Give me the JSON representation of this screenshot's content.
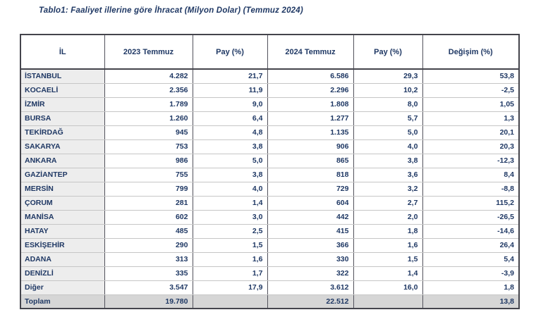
{
  "title": "Tablo1: Faaliyet illerine göre İhracat (Milyon Dolar) (Temmuz 2024)",
  "colors": {
    "text_navy": "#1f3864",
    "il_column_bg": "#ededed",
    "total_row_bg": "#d6d6d6",
    "border_dark": "#44444c",
    "border_light": "#c6c6c6"
  },
  "chart_data": {
    "type": "table",
    "title": "Tablo1: Faaliyet illerine göre İhracat (Milyon Dolar) (Temmuz 2024)",
    "columns": [
      "İL",
      "2023 Temmuz",
      "Pay (%)",
      "2024 Temmuz",
      "Pay (%)",
      "Değişim (%)"
    ],
    "rows": [
      [
        "İSTANBUL",
        "4.282",
        "21,7",
        "6.586",
        "29,3",
        "53,8"
      ],
      [
        "KOCAELİ",
        "2.356",
        "11,9",
        "2.296",
        "10,2",
        "-2,5"
      ],
      [
        "İZMİR",
        "1.789",
        "9,0",
        "1.808",
        "8,0",
        "1,05"
      ],
      [
        "BURSA",
        "1.260",
        "6,4",
        "1.277",
        "5,7",
        "1,3"
      ],
      [
        "TEKİRDAĞ",
        "945",
        "4,8",
        "1.135",
        "5,0",
        "20,1"
      ],
      [
        "SAKARYA",
        "753",
        "3,8",
        "906",
        "4,0",
        "20,3"
      ],
      [
        "ANKARA",
        "986",
        "5,0",
        "865",
        "3,8",
        "-12,3"
      ],
      [
        "GAZİANTEP",
        "755",
        "3,8",
        "818",
        "3,6",
        "8,4"
      ],
      [
        "MERSİN",
        "799",
        "4,0",
        "729",
        "3,2",
        "-8,8"
      ],
      [
        "ÇORUM",
        "281",
        "1,4",
        "604",
        "2,7",
        "115,2"
      ],
      [
        "MANİSA",
        "602",
        "3,0",
        "442",
        "2,0",
        "-26,5"
      ],
      [
        "HATAY",
        "485",
        "2,5",
        "415",
        "1,8",
        "-14,6"
      ],
      [
        "ESKİŞEHİR",
        "290",
        "1,5",
        "366",
        "1,6",
        "26,4"
      ],
      [
        "ADANA",
        "313",
        "1,6",
        "330",
        "1,5",
        "5,4"
      ],
      [
        "DENİZLİ",
        "335",
        "1,7",
        "322",
        "1,4",
        "-3,9"
      ],
      [
        "Diğer",
        "3.547",
        "17,9",
        "3.612",
        "16,0",
        "1,8"
      ]
    ],
    "total_row": [
      "Toplam",
      "19.780",
      "",
      "22.512",
      "",
      "13,8"
    ]
  }
}
